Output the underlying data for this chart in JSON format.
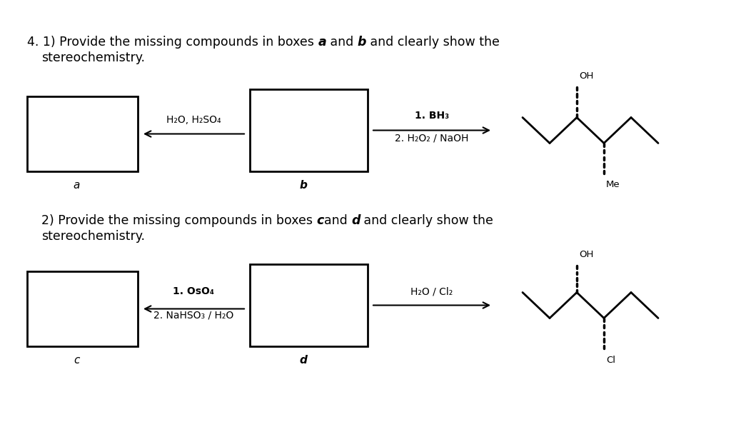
{
  "box_a_label": "a",
  "box_b_label": "b",
  "box_c_label": "c",
  "box_d_label": "d",
  "arrow1_label": "H₂O, H₂SO₄",
  "arrow2_label1": "1. BH₃",
  "arrow2_label2": "2. H₂O₂ / NaOH",
  "arrow3_label1": "1. OsO₄",
  "arrow3_label2": "2. NaHSO₃ / H₂O",
  "arrow4_label": "H₂O / Cl₂",
  "product1_oh": "OH",
  "product1_me": "Me",
  "product2_oh": "OH",
  "product2_cl": "Cl",
  "bg_color": "#ffffff",
  "fontsize_main": 12.5,
  "fontsize_arrow": 10,
  "fontsize_label": 11
}
